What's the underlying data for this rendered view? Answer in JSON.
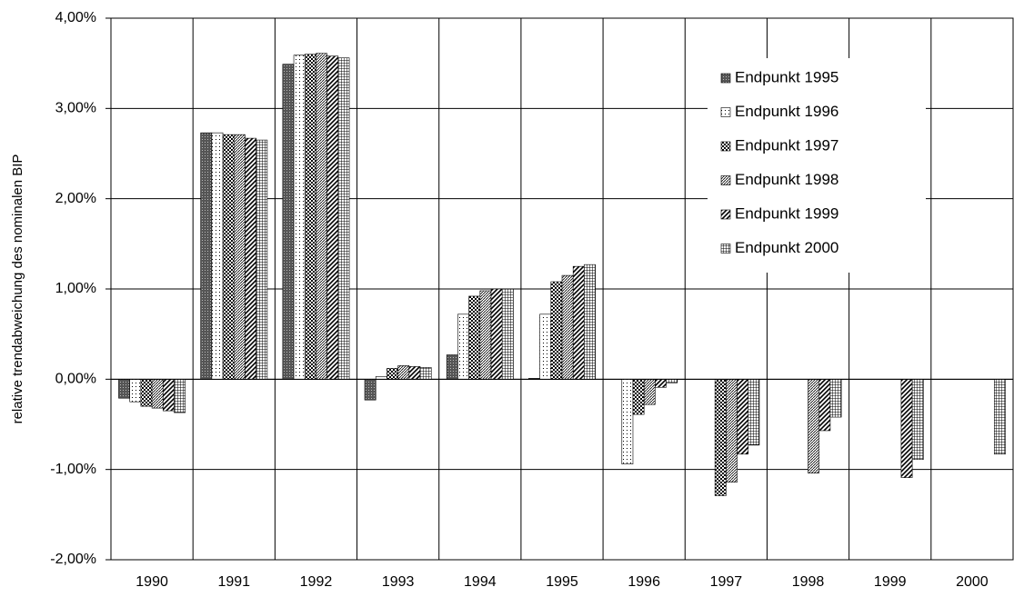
{
  "chart_data": {
    "type": "bar",
    "y_label": "relative trendabweichung des nominalen BIP",
    "categories": [
      "1990",
      "1991",
      "1992",
      "1993",
      "1994",
      "1995",
      "1996",
      "1997",
      "1998",
      "1999",
      "2000"
    ],
    "series": [
      {
        "name": "Endpunkt 1995",
        "color": "#000000",
        "values": [
          -0.21,
          2.73,
          3.49,
          -0.23,
          0.27,
          0.01,
          null,
          null,
          null,
          null,
          null
        ]
      },
      {
        "name": "Endpunkt 1996",
        "color": "#000000",
        "values": [
          -0.25,
          2.73,
          3.59,
          0.03,
          0.72,
          0.72,
          -0.94,
          null,
          null,
          null,
          null
        ]
      },
      {
        "name": "Endpunkt 1997",
        "color": "#000000",
        "values": [
          -0.3,
          2.71,
          3.6,
          0.12,
          0.92,
          1.08,
          -0.39,
          -1.29,
          null,
          null,
          null
        ]
      },
      {
        "name": "Endpunkt 1998",
        "color": "#000000",
        "values": [
          -0.32,
          2.71,
          3.61,
          0.15,
          0.98,
          1.15,
          -0.28,
          -1.14,
          -1.04,
          null,
          null
        ]
      },
      {
        "name": "Endpunkt 1999",
        "color": "#000000",
        "values": [
          -0.35,
          2.67,
          3.58,
          0.14,
          1.0,
          1.25,
          -0.09,
          -0.83,
          -0.57,
          -1.09,
          null
        ]
      },
      {
        "name": "Endpunkt 2000",
        "color": "#000000",
        "values": [
          -0.37,
          2.65,
          3.56,
          0.13,
          1.0,
          1.27,
          -0.04,
          -0.73,
          -0.42,
          -0.89,
          -0.83
        ]
      }
    ],
    "ylim": [
      -2,
      4
    ],
    "yticks": [
      {
        "value": -2,
        "label": "-2,00%"
      },
      {
        "value": -1,
        "label": "-1,00%"
      },
      {
        "value": 0,
        "label": "0,00%"
      },
      {
        "value": 1,
        "label": "1,00%"
      },
      {
        "value": 2,
        "label": "2,00%"
      },
      {
        "value": 3,
        "label": "3,00%"
      },
      {
        "value": 4,
        "label": "4,00%"
      }
    ],
    "grid": true,
    "legend": "upper right"
  }
}
